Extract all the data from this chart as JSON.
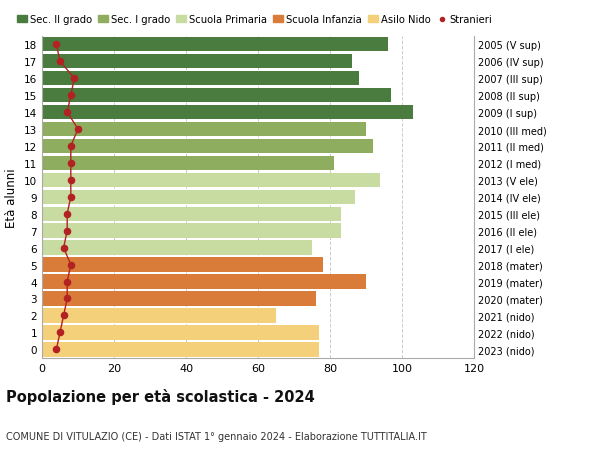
{
  "ages": [
    0,
    1,
    2,
    3,
    4,
    5,
    6,
    7,
    8,
    9,
    10,
    11,
    12,
    13,
    14,
    15,
    16,
    17,
    18
  ],
  "values": [
    77,
    77,
    65,
    76,
    90,
    78,
    75,
    83,
    83,
    87,
    94,
    81,
    92,
    90,
    103,
    97,
    88,
    86,
    96
  ],
  "stranieri": [
    4,
    5,
    6,
    7,
    7,
    8,
    6,
    7,
    7,
    8,
    8,
    8,
    8,
    10,
    7,
    8,
    9,
    5,
    4
  ],
  "bar_colors": [
    "#f5d07a",
    "#f5d07a",
    "#f5d07a",
    "#d97c3a",
    "#d97c3a",
    "#d97c3a",
    "#c8dba0",
    "#c8dba0",
    "#c8dba0",
    "#c8dba0",
    "#c8dba0",
    "#8fad5f",
    "#8fad5f",
    "#8fad5f",
    "#4a7c3f",
    "#4a7c3f",
    "#4a7c3f",
    "#4a7c3f",
    "#4a7c3f"
  ],
  "right_labels": [
    "2023 (nido)",
    "2022 (nido)",
    "2021 (nido)",
    "2020 (mater)",
    "2019 (mater)",
    "2018 (mater)",
    "2017 (I ele)",
    "2016 (II ele)",
    "2015 (III ele)",
    "2014 (IV ele)",
    "2013 (V ele)",
    "2012 (I med)",
    "2011 (II med)",
    "2010 (III med)",
    "2009 (I sup)",
    "2008 (II sup)",
    "2007 (III sup)",
    "2006 (IV sup)",
    "2005 (V sup)"
  ],
  "legend_labels": [
    "Sec. II grado",
    "Sec. I grado",
    "Scuola Primaria",
    "Scuola Infanzia",
    "Asilo Nido",
    "Stranieri"
  ],
  "legend_colors": [
    "#4a7c3f",
    "#8fad5f",
    "#c8dba0",
    "#d97c3a",
    "#f5d07a",
    "#b22222"
  ],
  "title_major": "Popolazione per età scolastica - 2024",
  "title_minor": "COMUNE DI VITULAZIO (CE) - Dati ISTAT 1° gennaio 2024 - Elaborazione TUTTITALIA.IT",
  "ylabel_left": "Età alunni",
  "xlim": [
    0,
    120
  ],
  "background_color": "#ffffff",
  "grid_color": "#cccccc",
  "stranieri_color": "#b22222"
}
